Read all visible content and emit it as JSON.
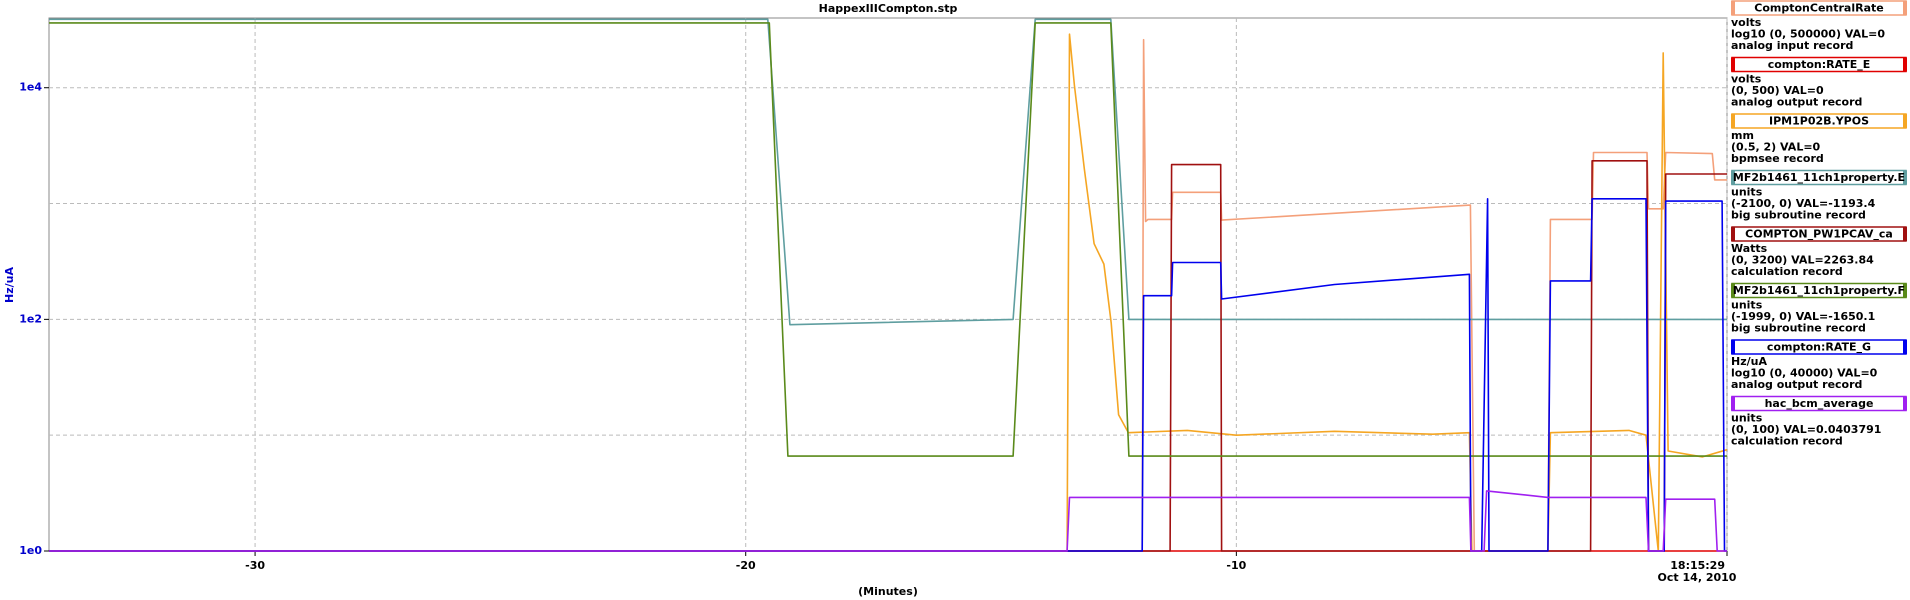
{
  "chart_data": {
    "type": "line",
    "title": "HappexIIICompton.stp",
    "ylabel": "Hz/uA",
    "xlabel": "(Minutes)",
    "xdate": "Oct 14, 2010",
    "ylog": true,
    "grid": true,
    "legend": "right",
    "xlim": [
      -34.2,
      0
    ],
    "ylim": [
      1,
      40000
    ],
    "xticks": [
      -30,
      -20,
      -10,
      {
        "value": 0,
        "label": "18:15:29"
      }
    ],
    "yticks": [
      {
        "value": 1,
        "label": "1e0"
      },
      {
        "value": 100,
        "label": "1e2"
      },
      {
        "value": 10000,
        "label": "1e4"
      }
    ],
    "yminor": [
      10,
      1000
    ],
    "series": [
      {
        "name": "ComptonCentralRate",
        "units": "volts",
        "range": "log10 (0, 500000) VAL=0",
        "record": "analog input record",
        "color": "#f4a07a",
        "x": [
          -34.2,
          -11.92,
          -11.89,
          -11.85,
          -11.8,
          -11.32,
          -11.3,
          -10.32,
          -10.3,
          -5.23,
          -5.15,
          -3.65,
          -3.6,
          -2.75,
          -2.72,
          -1.63,
          -1.6,
          -1.3,
          -1.25,
          -0.3,
          -0.25,
          0
        ],
        "values": [
          1,
          1,
          26000,
          700,
          730,
          730,
          1250,
          1250,
          720,
          970,
          1,
          1,
          730,
          730,
          2760,
          2760,
          900,
          900,
          2760,
          2700,
          1600,
          1600
        ]
      },
      {
        "name": "compton:RATE_E",
        "units": "volts",
        "range": "(0, 500)  VAL=0",
        "record": "analog output record",
        "color": "#e00000",
        "x": [
          -34.2,
          0
        ],
        "values": [
          1,
          1
        ]
      },
      {
        "name": "IPM1P02B.YPOS",
        "units": "mm",
        "range": "(0.5, 2) VAL=0",
        "record": "bpmsee record",
        "color": "#f5a623",
        "x": [
          -34.2,
          -13.45,
          -13.4,
          -13.3,
          -13.1,
          -12.9,
          -12.7,
          -12.55,
          -12.4,
          -12.2,
          -11.0,
          -10.0,
          -8.0,
          -6.0,
          -5.25,
          -5.2,
          -3.65,
          -3.6,
          -2.0,
          -1.65,
          -1.4,
          -1.3,
          -1.2,
          -0.5,
          0
        ],
        "values": [
          1,
          1,
          29000,
          10500,
          2000,
          450,
          300,
          93,
          15,
          10.5,
          11,
          10,
          10.8,
          10.2,
          10.5,
          1,
          1,
          10.5,
          11,
          10,
          1,
          20000,
          7.3,
          6.5,
          7.5
        ]
      },
      {
        "name": "MF2b1461_11ch1property.E",
        "units": "units",
        "range": "(-2100, 0) VAL=-1193.4",
        "record": "big subroutine record",
        "color": "#5f9ea0",
        "x": [
          -34.2,
          -19.55,
          -19.1,
          -14.55,
          -14.1,
          -12.56,
          -12.19,
          0
        ],
        "values": [
          39000,
          39000,
          90,
          100,
          39000,
          39000,
          100,
          100
        ]
      },
      {
        "name": "COMPTON_PW1PCAV_ca",
        "units": "Watts",
        "range": "(0, 3200) VAL=2263.84",
        "record": "calculation record",
        "color": "#a01010",
        "x": [
          -34.2,
          -11.35,
          -11.32,
          -10.32,
          -10.3,
          -2.78,
          -2.75,
          -1.63,
          -1.6,
          -1.28,
          -1.25,
          0
        ],
        "values": [
          1,
          1,
          2170,
          2170,
          1,
          1,
          2340,
          2340,
          1,
          1,
          1800,
          1800
        ]
      },
      {
        "name": "MF2b1461_11ch1property.F",
        "units": "units",
        "range": "(-1999, 0) VAL=-1650.1",
        "record": "big subroutine record",
        "color": "#5a8a1a",
        "x": [
          -34.2,
          -19.52,
          -19.14,
          -14.55,
          -14.1,
          -12.56,
          -12.19,
          0
        ],
        "values": [
          36300,
          36300,
          6.6,
          6.6,
          36300,
          36300,
          6.6,
          6.6
        ]
      },
      {
        "name": "compton:RATE_G",
        "units": "Hz/uA",
        "range": "log10 (0, 40000) VAL=0",
        "record": "analog output record",
        "color": "#0000ee",
        "x": [
          -34.2,
          -11.92,
          -11.89,
          -11.32,
          -11.3,
          -10.32,
          -10.3,
          -8,
          -5.25,
          -5.22,
          -5.0,
          -4.88,
          -4.85,
          -3.65,
          -3.6,
          -2.78,
          -2.75,
          -1.65,
          -1.6,
          -1.28,
          -1.25,
          -0.1,
          -0.05,
          0
        ],
        "values": [
          1,
          1,
          160,
          160,
          310,
          310,
          150,
          200,
          245,
          1,
          1,
          1100,
          1,
          1,
          215,
          215,
          1100,
          1100,
          1,
          1,
          1050,
          1050,
          1,
          1
        ]
      },
      {
        "name": "hac_bcm_average",
        "units": "units",
        "range": "(0, 100) VAL=0.0403791",
        "record": "calculation record",
        "color": "#a020f0",
        "x": [
          -34.2,
          -13.45,
          -13.4,
          -5.25,
          -5.22,
          -4.95,
          -4.9,
          -3.65,
          -1.65,
          -1.6,
          -1.3,
          -1.25,
          -0.25,
          -0.2,
          0
        ],
        "values": [
          1,
          1,
          2.9,
          2.9,
          1,
          1,
          3.3,
          2.9,
          2.9,
          1,
          1,
          2.8,
          2.8,
          1,
          1
        ]
      }
    ]
  }
}
